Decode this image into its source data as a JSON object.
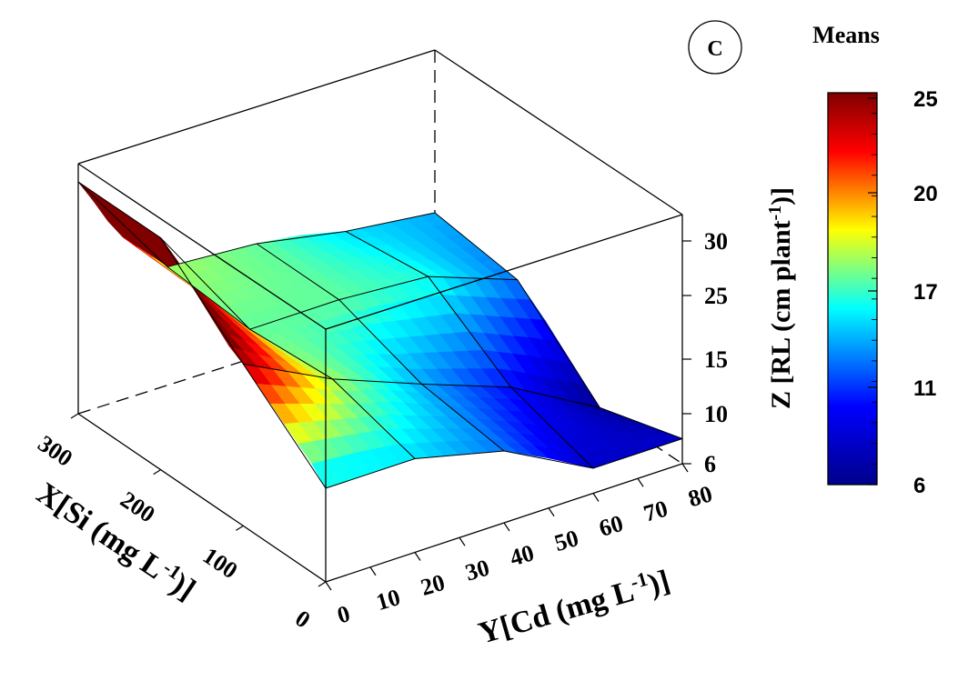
{
  "panel_label": "C",
  "chart_data": {
    "type": "surface3d",
    "x_axis": {
      "label": "X[Si (mg L",
      "label_sup": "-1",
      "label_end": ")]",
      "ticks": [
        "0",
        "100",
        "200",
        "300"
      ],
      "range": [
        0,
        300
      ]
    },
    "y_axis": {
      "label": "Y[Cd (mg L",
      "label_sup": "-1",
      "label_end": ")]",
      "ticks": [
        "0",
        "10",
        "20",
        "30",
        "40",
        "50",
        "60",
        "70",
        "80"
      ],
      "range": [
        0,
        80
      ]
    },
    "z_axis": {
      "label": "Z [RL (cm plant",
      "label_sup": "-1",
      "label_end": ")]",
      "ticks": [
        "6",
        "10",
        "15",
        "25",
        "30"
      ]
    },
    "colorbar": {
      "title": "Means",
      "ticks": [
        "6",
        "11",
        "17",
        "20",
        "25"
      ],
      "range": [
        6,
        25
      ],
      "colors": [
        "#00008b",
        "#0000ff",
        "#00ffff",
        "#ffff00",
        "#ff0000",
        "#800000"
      ]
    },
    "grid_x": [
      0,
      100,
      200,
      300
    ],
    "grid_y": [
      0,
      20,
      40,
      60,
      80
    ],
    "z": [
      [
        14,
        14,
        12,
        8,
        8
      ],
      [
        24,
        17,
        13,
        10,
        6
      ],
      [
        31,
        16,
        16,
        15,
        12
      ],
      [
        31,
        17,
        16,
        14,
        13
      ]
    ]
  }
}
